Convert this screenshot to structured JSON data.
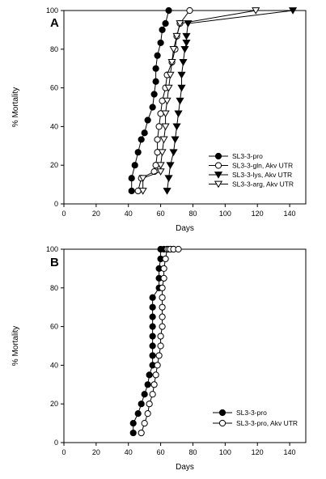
{
  "chart_data": [
    {
      "type": "line",
      "panel": "A",
      "xlabel": "Days",
      "ylabel": "% Mortality",
      "xlim": [
        0,
        150
      ],
      "ylim": [
        0,
        100
      ],
      "xticks": [
        0,
        20,
        40,
        60,
        80,
        100,
        120,
        140
      ],
      "yticks": [
        0,
        20,
        40,
        60,
        80,
        100
      ],
      "legend_position": "lower-right",
      "series": [
        {
          "name": "SL3-3-pro",
          "marker": "circle-filled",
          "color": "#000000",
          "x": [
            42,
            42,
            44,
            46,
            48,
            50,
            52,
            55,
            56,
            57,
            57,
            58,
            60,
            61,
            63,
            65
          ],
          "y": [
            6.7,
            13.3,
            20,
            26.7,
            33.3,
            36.7,
            43.3,
            50,
            56.7,
            63.3,
            70,
            76.7,
            83.3,
            90,
            93.3,
            100
          ]
        },
        {
          "name": "SL3-3-gln, Akv UTR",
          "marker": "circle-open",
          "color": "#000000",
          "x": [
            46,
            48,
            56,
            57,
            58,
            58,
            59,
            60,
            61,
            63,
            64,
            67,
            69,
            70,
            72,
            78
          ],
          "y": [
            6.7,
            13.3,
            16.7,
            20,
            26.7,
            33.3,
            40,
            46.7,
            53.3,
            60,
            66.7,
            73.3,
            80,
            86.7,
            93.3,
            100
          ]
        },
        {
          "name": "SL3-3-lys, Akv UTR",
          "marker": "triangle-down-filled",
          "color": "#000000",
          "x": [
            64,
            65,
            66,
            68,
            69,
            70,
            71,
            72,
            73,
            73,
            74,
            75,
            76,
            76,
            77,
            142
          ],
          "y": [
            6.7,
            13.3,
            20,
            26.7,
            33.3,
            40,
            46.7,
            53.3,
            60,
            66.7,
            73.3,
            80,
            83.3,
            86.7,
            93.3,
            100
          ]
        },
        {
          "name": "SL3-3-arg, Akv UTR",
          "marker": "triangle-down-open",
          "color": "#000000",
          "x": [
            49,
            49,
            60,
            60,
            61,
            62,
            63,
            63,
            64,
            65,
            66,
            67,
            68,
            70,
            72,
            119
          ],
          "y": [
            6.7,
            13.3,
            16.7,
            20,
            26.7,
            33.3,
            40,
            46.7,
            53.3,
            60,
            66.7,
            73.3,
            80,
            86.7,
            93.3,
            100
          ]
        }
      ]
    },
    {
      "type": "line",
      "panel": "B",
      "xlabel": "Days",
      "ylabel": "% Mortality",
      "xlim": [
        0,
        150
      ],
      "ylim": [
        0,
        100
      ],
      "xticks": [
        0,
        20,
        40,
        60,
        80,
        100,
        120,
        140
      ],
      "yticks": [
        0,
        20,
        40,
        60,
        80,
        100
      ],
      "legend_position": "lower-right",
      "series": [
        {
          "name": "SL3-3-pro",
          "marker": "circle-filled",
          "color": "#000000",
          "x": [
            43,
            43,
            46,
            48,
            50,
            52,
            53,
            55,
            55,
            55,
            55,
            55,
            55,
            55,
            55,
            59,
            59,
            59,
            60,
            60,
            62,
            64,
            66,
            68
          ],
          "y": [
            5,
            10,
            15,
            20,
            25,
            30,
            35,
            40,
            45,
            50,
            55,
            60,
            65,
            70,
            75,
            80,
            85,
            90,
            95,
            100,
            100,
            100,
            100,
            100
          ]
        },
        {
          "name": "SL3-3-pro, Akv UTR",
          "marker": "circle-open",
          "color": "#000000",
          "x": [
            48,
            50,
            52,
            53,
            55,
            56,
            57,
            58,
            59,
            60,
            60,
            61,
            61,
            61,
            61,
            61,
            62,
            62,
            63,
            64,
            65,
            66,
            68,
            71
          ],
          "y": [
            5,
            10,
            15,
            20,
            25,
            30,
            35,
            40,
            45,
            50,
            55,
            60,
            65,
            70,
            75,
            80,
            85,
            90,
            95,
            100,
            100,
            100,
            100,
            100
          ]
        }
      ]
    }
  ]
}
